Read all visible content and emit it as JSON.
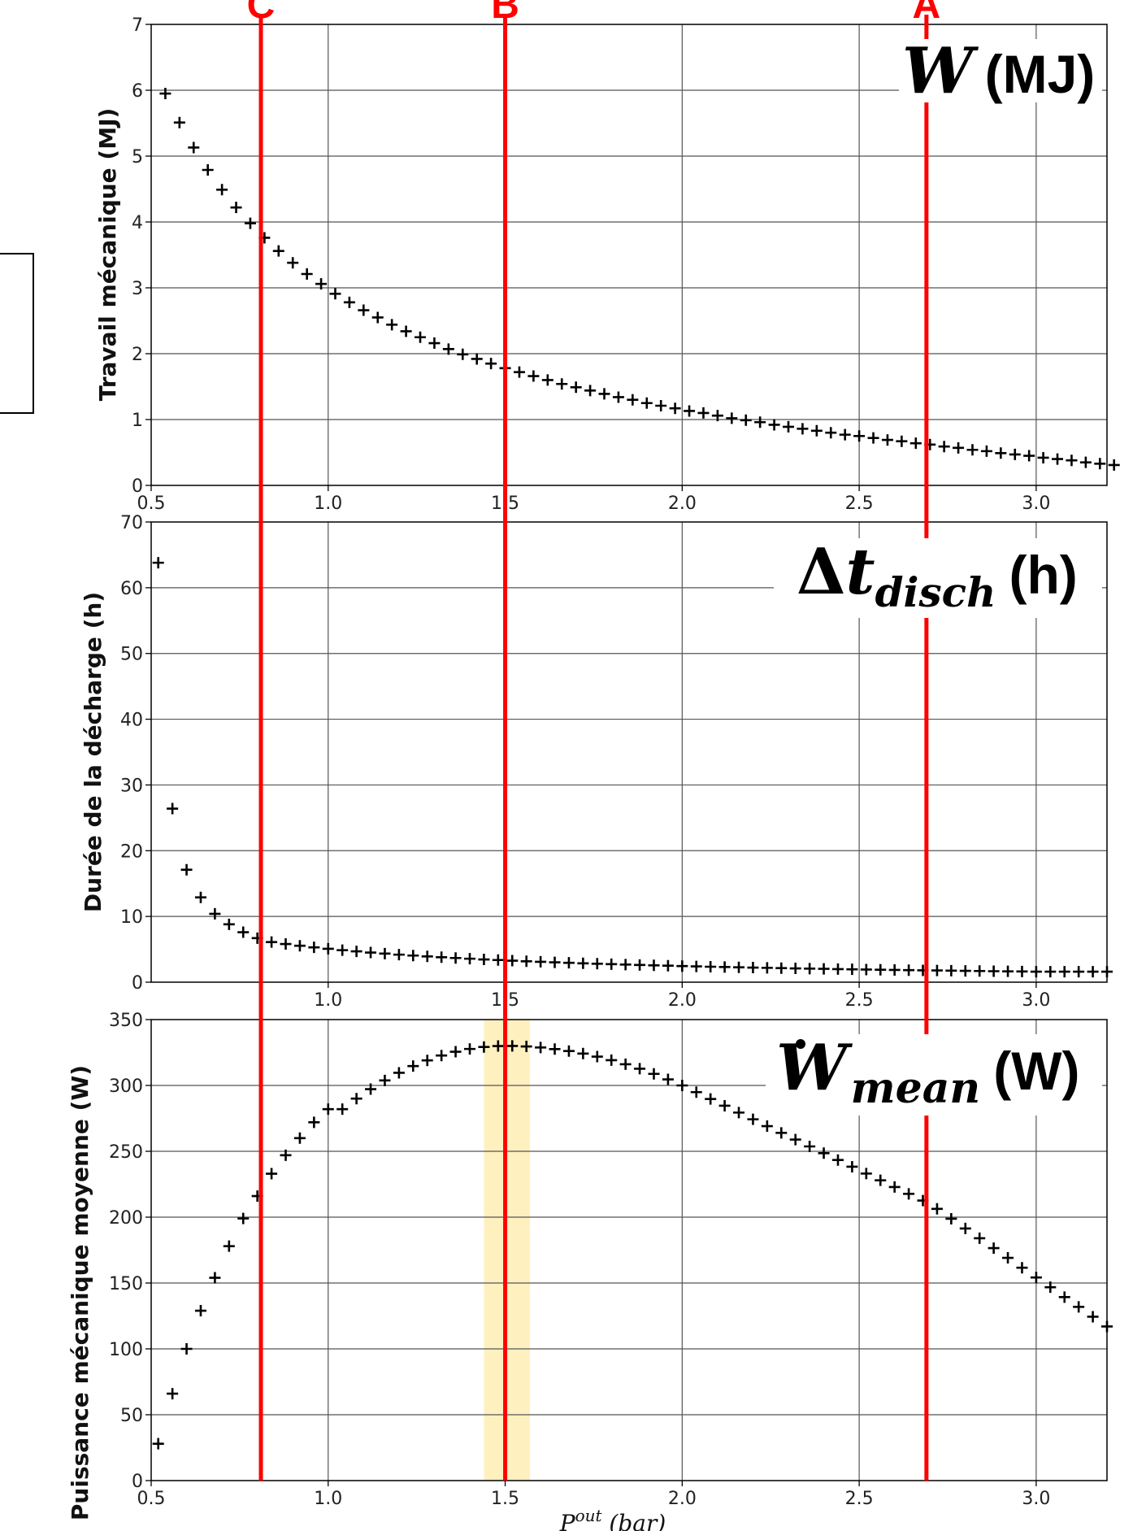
{
  "chart_data": [
    {
      "type": "scatter",
      "ylabel": "Travail mécanique (MJ)",
      "annotation": {
        "symbol": "W",
        "unit": "(MJ)"
      },
      "xlim": [
        0.5,
        3.2
      ],
      "ylim": [
        0,
        7
      ],
      "xticks": [
        "0.5",
        "1.0",
        "1.5",
        "2.0",
        "2.5",
        "3.0"
      ],
      "yticks": [
        "0",
        "1",
        "2",
        "3",
        "4",
        "5",
        "6",
        "7"
      ],
      "grid": true,
      "marker": "+",
      "series": [
        {
          "x_start": 0.54,
          "x_step": 0.04,
          "count": 68,
          "y_model": "6.53*(0.54/x)^0.97*(1-x/3.55)^0.56"
        }
      ]
    },
    {
      "type": "scatter",
      "ylabel": "Durée de la décharge (h)",
      "annotation": {
        "symbol": "Δt",
        "subscript": "disch",
        "unit": "(h)"
      },
      "xlim": [
        0.5,
        3.2
      ],
      "ylim": [
        0,
        70
      ],
      "xticks": [
        "1.0",
        "1.5",
        "2.0",
        "2.5",
        "3.0"
      ],
      "yticks": [
        "0",
        "10",
        "20",
        "30",
        "40",
        "50",
        "60",
        "70"
      ],
      "grid": true,
      "marker": "+",
      "series": [
        {
          "x": [
            0.52,
            0.56,
            0.6,
            0.64,
            0.68,
            0.72,
            0.76,
            0.8
          ],
          "y": [
            63.8,
            26.4,
            17.1,
            12.9,
            10.4,
            8.8,
            7.6,
            6.7
          ],
          "tail": {
            "x_start": 0.84,
            "x_step": 0.04,
            "count": 60,
            "y_model": "6.1*(0.84/x)^1.05 floored at 1.6"
          }
        }
      ]
    },
    {
      "type": "scatter",
      "ylabel": "Puissance mécanique moyenne (W)",
      "xlabel": "P^out (bar)",
      "annotation": {
        "symbol": "W",
        "subscript": "mean",
        "unit": "(W)"
      },
      "xlim": [
        0.5,
        3.2
      ],
      "ylim": [
        0,
        350
      ],
      "xticks": [
        "0.5",
        "1.0",
        "1.5",
        "2.0",
        "2.5",
        "3.0"
      ],
      "yticks": [
        "0",
        "50",
        "100",
        "150",
        "200",
        "250",
        "300",
        "350"
      ],
      "grid": true,
      "marker": "+",
      "highlight_band": {
        "x": [
          1.44,
          1.57
        ],
        "color": "#fff0c0"
      },
      "series": [
        {
          "x": [
            0.52,
            0.56,
            0.6,
            0.64,
            0.68,
            0.72,
            0.76,
            0.8,
            0.84,
            0.88,
            0.92,
            0.96,
            1.0
          ],
          "y": [
            28,
            66,
            100,
            129,
            154,
            178,
            199,
            216,
            233,
            247,
            260,
            272,
            282
          ],
          "tail": {
            "x_start": 1.04,
            "x_step": 0.04,
            "count": 55,
            "y_model": "peak 330 at x=1.5, 300 at 2.0, 210 at 2.7, 150 at 3.0, 117 at 3.2"
          }
        }
      ]
    }
  ],
  "markers": [
    {
      "label": "C",
      "x": 0.81
    },
    {
      "label": "B",
      "x": 1.5
    },
    {
      "label": "A",
      "x": 2.69
    }
  ],
  "colors": {
    "marker_line": "#ff0000",
    "points": "#000000",
    "grid": "#555555",
    "band": "#fff0c0"
  }
}
